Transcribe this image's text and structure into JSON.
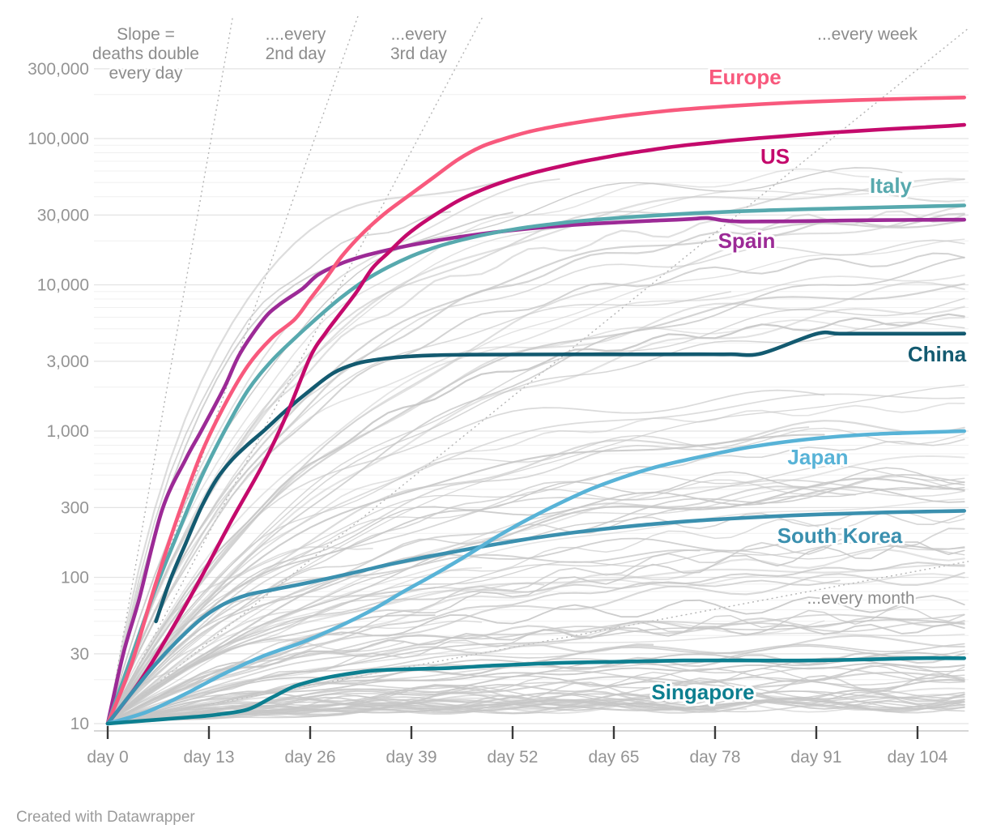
{
  "chart_data": {
    "type": "line",
    "y_axis": {
      "scale": "log",
      "tick_values": [
        10,
        30,
        100,
        300,
        1000,
        3000,
        10000,
        30000,
        100000,
        300000
      ],
      "tick_labels": [
        "10",
        "30",
        "100",
        "300",
        "1,000",
        "3,000",
        "10,000",
        "30,000",
        "100,000",
        "300,000"
      ],
      "range": [
        10,
        377000
      ],
      "grid": true
    },
    "x_axis": {
      "tick_values": [
        0,
        13,
        26,
        39,
        52,
        65,
        78,
        91,
        104
      ],
      "tick_labels": [
        "day 0",
        "day 13",
        "day 26",
        "day 39",
        "day 52",
        "day 65",
        "day 78",
        "day 91",
        "day 104"
      ],
      "range": [
        0,
        110
      ]
    },
    "slope_guides": [
      {
        "id": "double-every-day",
        "doubling_days": 1,
        "label_lines": [
          "Slope =",
          "deaths double",
          "every day"
        ]
      },
      {
        "id": "double-every-2nd-day",
        "doubling_days": 2,
        "label_lines": [
          "....every",
          "2nd day"
        ]
      },
      {
        "id": "double-every-3rd-day",
        "doubling_days": 3,
        "label_lines": [
          "...every",
          "3rd day"
        ]
      },
      {
        "id": "double-every-week",
        "doubling_days": 7,
        "label_lines": [
          "...every week"
        ]
      },
      {
        "id": "double-every-month",
        "doubling_days": 30,
        "label_lines": [
          "...every month"
        ]
      }
    ],
    "series": [
      {
        "name": "Europe",
        "color": "#f8597d",
        "points": [
          [
            0,
            10
          ],
          [
            3,
            25
          ],
          [
            6,
            85
          ],
          [
            9,
            260
          ],
          [
            12,
            700
          ],
          [
            15,
            1500
          ],
          [
            18,
            2800
          ],
          [
            21,
            4300
          ],
          [
            24,
            5800
          ],
          [
            26,
            8000
          ],
          [
            28,
            11000
          ],
          [
            30,
            15500
          ],
          [
            32,
            20500
          ],
          [
            34,
            26000
          ],
          [
            36,
            32000
          ],
          [
            39,
            42000
          ],
          [
            42,
            55000
          ],
          [
            45,
            72000
          ],
          [
            48,
            88000
          ],
          [
            51,
            100000
          ],
          [
            54,
            111000
          ],
          [
            57,
            120000
          ],
          [
            60,
            128000
          ],
          [
            64,
            138000
          ],
          [
            68,
            147000
          ],
          [
            72,
            155000
          ],
          [
            76,
            161500
          ],
          [
            80,
            167000
          ],
          [
            84,
            172000
          ],
          [
            88,
            176500
          ],
          [
            92,
            180000
          ],
          [
            96,
            183000
          ],
          [
            100,
            185500
          ],
          [
            104,
            188000
          ],
          [
            107,
            189500
          ],
          [
            110,
            191000
          ]
        ]
      },
      {
        "name": "US",
        "color": "#c40a6c",
        "points": [
          [
            0,
            10
          ],
          [
            4,
            19
          ],
          [
            8,
            42
          ],
          [
            12,
            100
          ],
          [
            16,
            250
          ],
          [
            20,
            600
          ],
          [
            23,
            1300
          ],
          [
            26,
            3200
          ],
          [
            28,
            4700
          ],
          [
            30,
            6500
          ],
          [
            32,
            9000
          ],
          [
            34,
            13000
          ],
          [
            36,
            16500
          ],
          [
            38,
            21000
          ],
          [
            40,
            25500
          ],
          [
            42,
            30000
          ],
          [
            45,
            37500
          ],
          [
            48,
            44500
          ],
          [
            51,
            51000
          ],
          [
            54,
            57000
          ],
          [
            57,
            62500
          ],
          [
            60,
            68000
          ],
          [
            63,
            73000
          ],
          [
            66,
            78000
          ],
          [
            69,
            82500
          ],
          [
            72,
            87000
          ],
          [
            75,
            91000
          ],
          [
            78,
            94500
          ],
          [
            81,
            98000
          ],
          [
            84,
            101000
          ],
          [
            87,
            104000
          ],
          [
            90,
            107000
          ],
          [
            93,
            110000
          ],
          [
            96,
            112500
          ],
          [
            99,
            115000
          ],
          [
            102,
            117500
          ],
          [
            105,
            119500
          ],
          [
            108,
            122000
          ],
          [
            110,
            124000
          ]
        ]
      },
      {
        "name": "Italy",
        "color": "#57a9ae",
        "points": [
          [
            0,
            10
          ],
          [
            3,
            28
          ],
          [
            6,
            80
          ],
          [
            9,
            200
          ],
          [
            12,
            480
          ],
          [
            15,
            1000
          ],
          [
            18,
            1900
          ],
          [
            21,
            3000
          ],
          [
            24,
            4300
          ],
          [
            27,
            6000
          ],
          [
            30,
            8200
          ],
          [
            33,
            10700
          ],
          [
            36,
            13200
          ],
          [
            39,
            15700
          ],
          [
            42,
            18000
          ],
          [
            45,
            20000
          ],
          [
            48,
            21800
          ],
          [
            51,
            23400
          ],
          [
            54,
            24800
          ],
          [
            57,
            26000
          ],
          [
            60,
            27100
          ],
          [
            63,
            28000
          ],
          [
            66,
            28800
          ],
          [
            69,
            29500
          ],
          [
            72,
            30200
          ],
          [
            75,
            30800
          ],
          [
            78,
            31300
          ],
          [
            81,
            31800
          ],
          [
            84,
            32200
          ],
          [
            87,
            32600
          ],
          [
            90,
            32900
          ],
          [
            93,
            33200
          ],
          [
            96,
            33500
          ],
          [
            99,
            33800
          ],
          [
            102,
            34100
          ],
          [
            105,
            34400
          ],
          [
            108,
            34700
          ],
          [
            110,
            34900
          ]
        ]
      },
      {
        "name": "Spain",
        "color": "#9c2a96",
        "points": [
          [
            0,
            10
          ],
          [
            2,
            30
          ],
          [
            4,
            70
          ],
          [
            7,
            290
          ],
          [
            10,
            640
          ],
          [
            12,
            1000
          ],
          [
            15,
            2000
          ],
          [
            17,
            3400
          ],
          [
            20,
            5800
          ],
          [
            22,
            7300
          ],
          [
            25,
            9400
          ],
          [
            27,
            11700
          ],
          [
            30,
            14000
          ],
          [
            33,
            15800
          ],
          [
            36,
            17300
          ],
          [
            39,
            18700
          ],
          [
            42,
            20000
          ],
          [
            45,
            21200
          ],
          [
            48,
            22300
          ],
          [
            51,
            23300
          ],
          [
            54,
            24200
          ],
          [
            57,
            25000
          ],
          [
            60,
            25700
          ],
          [
            63,
            26300
          ],
          [
            66,
            26800
          ],
          [
            69,
            27300
          ],
          [
            72,
            27700
          ],
          [
            75,
            28200
          ],
          [
            77,
            28600
          ],
          [
            79,
            27600
          ],
          [
            81,
            27100
          ],
          [
            84,
            27100
          ],
          [
            88,
            27200
          ],
          [
            92,
            27400
          ],
          [
            96,
            27600
          ],
          [
            100,
            27700
          ],
          [
            104,
            27800
          ],
          [
            107,
            27850
          ],
          [
            110,
            27900
          ]
        ]
      },
      {
        "name": "China",
        "color": "#135a70",
        "points": [
          [
            6.2,
            50
          ],
          [
            8,
            95
          ],
          [
            10,
            170
          ],
          [
            12,
            300
          ],
          [
            14,
            470
          ],
          [
            16,
            640
          ],
          [
            18,
            810
          ],
          [
            20,
            1000
          ],
          [
            23,
            1400
          ],
          [
            26,
            1900
          ],
          [
            29,
            2500
          ],
          [
            32,
            2900
          ],
          [
            35,
            3100
          ],
          [
            38,
            3220
          ],
          [
            42,
            3300
          ],
          [
            46,
            3330
          ],
          [
            52,
            3340
          ],
          [
            60,
            3345
          ],
          [
            68,
            3345
          ],
          [
            76,
            3350
          ],
          [
            80,
            3350
          ],
          [
            84,
            3400
          ],
          [
            91,
            4620
          ],
          [
            94,
            4633
          ],
          [
            100,
            4634
          ],
          [
            106,
            4636
          ],
          [
            110,
            4640
          ]
        ]
      },
      {
        "name": "Japan",
        "color": "#58b3d7",
        "points": [
          [
            0,
            10
          ],
          [
            5,
            12
          ],
          [
            10,
            16
          ],
          [
            15,
            22
          ],
          [
            20,
            29
          ],
          [
            25,
            36
          ],
          [
            30,
            47
          ],
          [
            34,
            60
          ],
          [
            38,
            80
          ],
          [
            42,
            105
          ],
          [
            46,
            140
          ],
          [
            50,
            190
          ],
          [
            54,
            250
          ],
          [
            58,
            320
          ],
          [
            62,
            400
          ],
          [
            66,
            480
          ],
          [
            70,
            560
          ],
          [
            74,
            630
          ],
          [
            78,
            700
          ],
          [
            82,
            770
          ],
          [
            86,
            830
          ],
          [
            90,
            880
          ],
          [
            94,
            920
          ],
          [
            98,
            950
          ],
          [
            102,
            970
          ],
          [
            106,
            985
          ],
          [
            110,
            1000
          ]
        ]
      },
      {
        "name": "South Korea",
        "color": "#3b90af",
        "points": [
          [
            0,
            10
          ],
          [
            3,
            16
          ],
          [
            6,
            25
          ],
          [
            9,
            37
          ],
          [
            12,
            52
          ],
          [
            15,
            66
          ],
          [
            18,
            76
          ],
          [
            21,
            82
          ],
          [
            24,
            88
          ],
          [
            27,
            95
          ],
          [
            30,
            103
          ],
          [
            33,
            112
          ],
          [
            36,
            122
          ],
          [
            40,
            135
          ],
          [
            44,
            148
          ],
          [
            48,
            162
          ],
          [
            52,
            176
          ],
          [
            56,
            190
          ],
          [
            60,
            203
          ],
          [
            64,
            215
          ],
          [
            68,
            226
          ],
          [
            72,
            236
          ],
          [
            76,
            245
          ],
          [
            80,
            252
          ],
          [
            84,
            259
          ],
          [
            88,
            265
          ],
          [
            92,
            270
          ],
          [
            96,
            274
          ],
          [
            100,
            278
          ],
          [
            104,
            281
          ],
          [
            107,
            283
          ],
          [
            110,
            285
          ]
        ]
      },
      {
        "name": "Singapore",
        "color": "#0d7f90",
        "points": [
          [
            0,
            10
          ],
          [
            5,
            10.5
          ],
          [
            10,
            11
          ],
          [
            14,
            11.5
          ],
          [
            18,
            12.5
          ],
          [
            21,
            15
          ],
          [
            24,
            18
          ],
          [
            27,
            20
          ],
          [
            30,
            21.5
          ],
          [
            34,
            23
          ],
          [
            38,
            23.5
          ],
          [
            44,
            24
          ],
          [
            50,
            25
          ],
          [
            58,
            26
          ],
          [
            66,
            26.5
          ],
          [
            74,
            27
          ],
          [
            82,
            27
          ],
          [
            90,
            27
          ],
          [
            98,
            27.5
          ],
          [
            104,
            28
          ],
          [
            110,
            28
          ]
        ]
      }
    ],
    "background_series": {
      "description": "unlabeled gray country lines",
      "count": 118,
      "seed": 42,
      "color": "#c6c6c6",
      "end_log10_range": [
        1.12,
        4.87
      ],
      "start_value": 10
    }
  },
  "footer": {
    "credit": "Created with Datawrapper"
  }
}
